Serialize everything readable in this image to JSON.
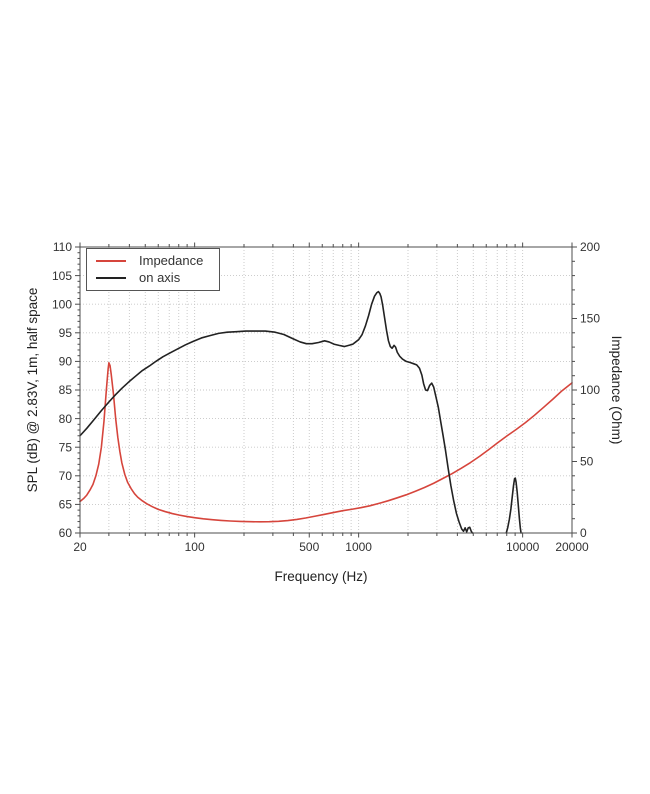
{
  "chart_data": {
    "type": "line",
    "title": "",
    "xlabel": "Frequency (Hz)",
    "ylabel_left": "SPL (dB) @ 2.83V, 1m, half space",
    "ylabel_right": "Impedance (Ohm)",
    "x_axis": {
      "scale": "log",
      "min": 20,
      "max": 20000,
      "tick_labels": [
        20,
        100,
        500,
        1000,
        10000,
        20000
      ]
    },
    "y_left": {
      "min": 60,
      "max": 110,
      "major_step": 5,
      "minor_step": 1,
      "tick_labels": [
        60,
        65,
        70,
        75,
        80,
        85,
        90,
        95,
        100,
        105,
        110
      ]
    },
    "y_right": {
      "min": 0,
      "max": 200,
      "major_step": 50,
      "minor_step": 10,
      "tick_labels": [
        0,
        50,
        100,
        150,
        200
      ]
    },
    "grid": {
      "style": "dotted",
      "color": "#c6c6c6",
      "horizontal_step_db": 5
    },
    "legend": {
      "position": "top-left",
      "items": [
        {
          "label": "Impedance",
          "color": "#d6453c"
        },
        {
          "label": "on axis",
          "color": "#222222"
        }
      ]
    },
    "series": [
      {
        "name": "Impedance",
        "axis": "right",
        "unit": "Ohm",
        "color": "#d6453c",
        "segments": [
          [
            [
              20,
              22
            ],
            [
              21,
              24
            ],
            [
              22,
              26.5
            ],
            [
              23,
              30
            ],
            [
              24,
              34
            ],
            [
              25,
              40
            ],
            [
              26,
              48
            ],
            [
              27,
              60
            ],
            [
              28,
              78
            ],
            [
              29,
              101
            ],
            [
              29.7,
              115
            ],
            [
              30,
              119
            ],
            [
              30.5,
              117
            ],
            [
              31,
              111
            ],
            [
              32,
              97
            ],
            [
              33,
              80
            ],
            [
              34,
              67
            ],
            [
              35,
              57
            ],
            [
              36,
              49
            ],
            [
              37.5,
              41
            ],
            [
              39,
              35.5
            ],
            [
              41,
              31
            ],
            [
              43,
              27.5
            ],
            [
              45,
              25
            ],
            [
              48,
              22.5
            ],
            [
              51,
              20.5
            ],
            [
              55,
              18.5
            ],
            [
              60,
              16.5
            ],
            [
              66,
              15
            ],
            [
              73,
              13.6
            ],
            [
              80,
              12.6
            ],
            [
              90,
              11.5
            ],
            [
              100,
              10.7
            ],
            [
              113,
              9.9
            ],
            [
              128,
              9.3
            ],
            [
              145,
              8.8
            ],
            [
              165,
              8.4
            ],
            [
              190,
              8.1
            ],
            [
              220,
              7.9
            ],
            [
              250,
              7.8
            ],
            [
              285,
              7.9
            ],
            [
              325,
              8.2
            ],
            [
              370,
              8.7
            ],
            [
              420,
              9.5
            ],
            [
              475,
              10.5
            ],
            [
              540,
              11.7
            ],
            [
              615,
              13.0
            ],
            [
              700,
              14.3
            ],
            [
              800,
              15.6
            ],
            [
              910,
              16.6
            ],
            [
              1030,
              17.7
            ],
            [
              1170,
              19.0
            ],
            [
              1330,
              20.7
            ],
            [
              1510,
              22.5
            ],
            [
              1720,
              24.6
            ],
            [
              1950,
              26.7
            ],
            [
              2220,
              29.2
            ],
            [
              2520,
              31.8
            ],
            [
              2870,
              34.8
            ],
            [
              3260,
              38.1
            ],
            [
              3710,
              41.5
            ],
            [
              4220,
              45.2
            ],
            [
              4800,
              49.2
            ],
            [
              5460,
              53.6
            ],
            [
              6210,
              58.3
            ],
            [
              7060,
              63.2
            ],
            [
              8030,
              67.9
            ],
            [
              9130,
              72.4
            ],
            [
              10400,
              77.2
            ],
            [
              11800,
              82.3
            ],
            [
              13400,
              87.8
            ],
            [
              15300,
              93.6
            ],
            [
              17400,
              99.5
            ],
            [
              20000,
              105
            ]
          ]
        ]
      },
      {
        "name": "on axis",
        "axis": "left",
        "unit": "dB SPL",
        "color": "#222222",
        "segments": [
          [
            [
              20,
              77.0
            ],
            [
              22,
              78.3
            ],
            [
              24,
              79.6
            ],
            [
              27,
              81.4
            ],
            [
              30,
              82.9
            ],
            [
              33,
              84.2
            ],
            [
              36,
              85.3
            ],
            [
              40,
              86.5
            ],
            [
              44,
              87.5
            ],
            [
              48,
              88.4
            ],
            [
              53,
              89.2
            ],
            [
              58,
              90.0
            ],
            [
              64,
              90.8
            ],
            [
              71,
              91.5
            ],
            [
              79,
              92.2
            ],
            [
              88,
              92.9
            ],
            [
              98,
              93.5
            ],
            [
              110,
              94.1
            ],
            [
              124,
              94.5
            ],
            [
              140,
              94.9
            ],
            [
              158,
              95.1
            ],
            [
              180,
              95.2
            ],
            [
              205,
              95.3
            ],
            [
              235,
              95.3
            ],
            [
              270,
              95.3
            ],
            [
              310,
              95.1
            ],
            [
              350,
              94.7
            ],
            [
              395,
              94.0
            ],
            [
              440,
              93.4
            ],
            [
              480,
              93.1
            ],
            [
              520,
              93.1
            ],
            [
              570,
              93.3
            ],
            [
              620,
              93.6
            ],
            [
              660,
              93.4
            ],
            [
              710,
              93.0
            ],
            [
              760,
              92.8
            ],
            [
              820,
              92.6
            ],
            [
              870,
              92.8
            ],
            [
              920,
              93.0
            ],
            [
              960,
              93.4
            ],
            [
              1000,
              93.8
            ],
            [
              1050,
              94.7
            ],
            [
              1100,
              96.2
            ],
            [
              1150,
              98.0
            ],
            [
              1200,
              100.0
            ],
            [
              1250,
              101.4
            ],
            [
              1290,
              102.0
            ],
            [
              1320,
              102.2
            ],
            [
              1345,
              101.9
            ],
            [
              1370,
              101.3
            ],
            [
              1400,
              99.9
            ],
            [
              1440,
              97.6
            ],
            [
              1480,
              95.4
            ],
            [
              1520,
              93.6
            ],
            [
              1560,
              92.6
            ],
            [
              1600,
              92.3
            ],
            [
              1645,
              92.8
            ],
            [
              1680,
              92.5
            ],
            [
              1720,
              91.6
            ],
            [
              1780,
              90.9
            ],
            [
              1850,
              90.4
            ],
            [
              1950,
              90.0
            ],
            [
              2060,
              89.8
            ],
            [
              2160,
              89.6
            ],
            [
              2260,
              89.4
            ],
            [
              2350,
              88.8
            ],
            [
              2430,
              87.6
            ],
            [
              2490,
              86.1
            ],
            [
              2560,
              85.0
            ],
            [
              2630,
              84.9
            ],
            [
              2710,
              85.8
            ],
            [
              2790,
              86.2
            ],
            [
              2870,
              85.5
            ],
            [
              2950,
              84.0
            ],
            [
              3060,
              82.0
            ],
            [
              3160,
              79.6
            ],
            [
              3270,
              77.1
            ],
            [
              3380,
              74.6
            ],
            [
              3510,
              71.4
            ],
            [
              3650,
              68.3
            ],
            [
              3800,
              65.6
            ],
            [
              3950,
              63.4
            ],
            [
              4100,
              61.9
            ],
            [
              4250,
              60.7
            ],
            [
              4360,
              60.3
            ],
            [
              4460,
              60.9
            ],
            [
              4560,
              60.2
            ],
            [
              4660,
              60.9
            ],
            [
              4760,
              61.0
            ],
            [
              4860,
              60.3
            ],
            [
              4940,
              60.0
            ]
          ],
          [
            [
              7950,
              60.0
            ],
            [
              8120,
              61.0
            ],
            [
              8300,
              62.4
            ],
            [
              8480,
              64.2
            ],
            [
              8650,
              66.4
            ],
            [
              8800,
              68.3
            ],
            [
              8930,
              69.5
            ],
            [
              9020,
              69.6
            ],
            [
              9120,
              68.9
            ],
            [
              9260,
              67.2
            ],
            [
              9400,
              65.0
            ],
            [
              9550,
              62.6
            ],
            [
              9680,
              60.9
            ],
            [
              9780,
              60.0
            ]
          ]
        ]
      }
    ]
  }
}
